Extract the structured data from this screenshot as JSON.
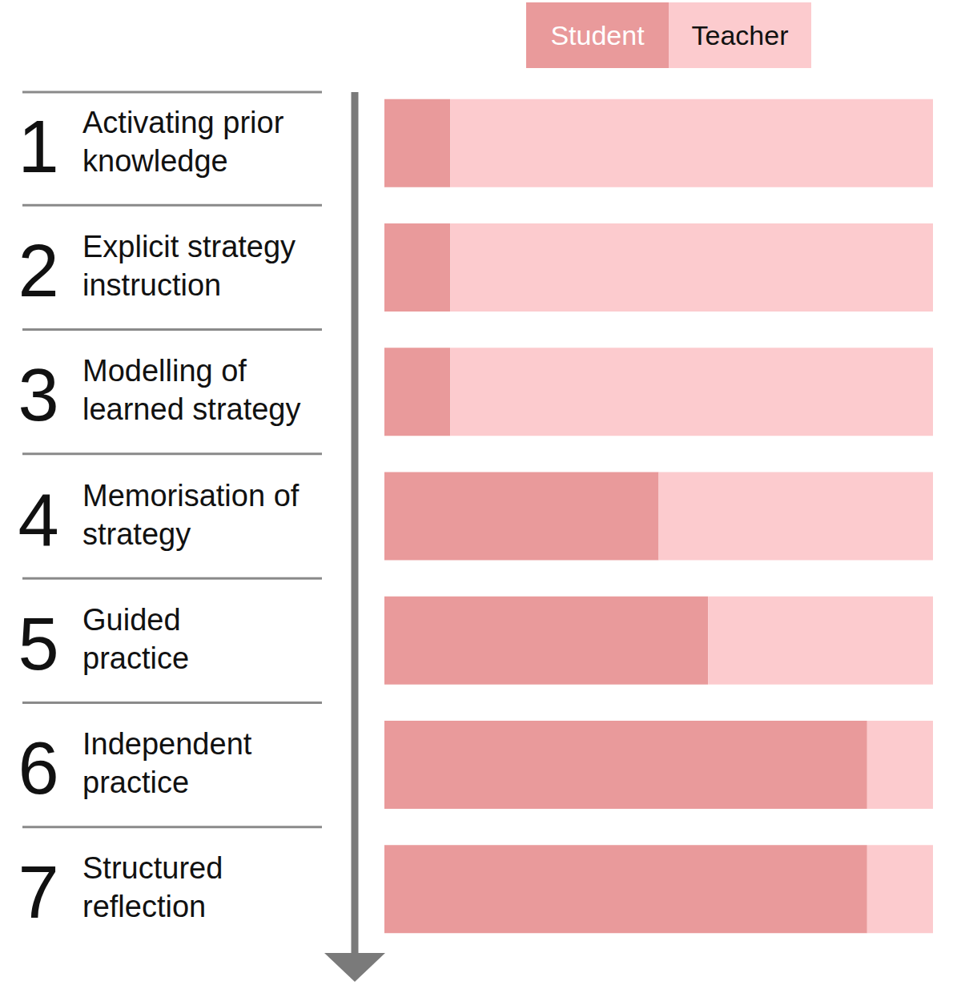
{
  "chart_data": {
    "type": "bar",
    "orientation": "horizontal",
    "stacked": true,
    "step_numbers": [
      1,
      2,
      3,
      4,
      5,
      6,
      7
    ],
    "categories": [
      "Activating prior\nknowledge",
      "Explicit strategy\ninstruction",
      "Modelling of\nlearned strategy",
      "Memorisation of\nstrategy",
      "Guided\npractice",
      "Independent\npractice",
      "Structured\nreflection"
    ],
    "series": [
      {
        "name": "Student",
        "color": "#e99a9b",
        "values": [
          12,
          12,
          12,
          50,
          59,
          88,
          88
        ]
      },
      {
        "name": "Teacher",
        "color": "#fccbce",
        "values": [
          88,
          88,
          88,
          50,
          41,
          12,
          12
        ]
      }
    ],
    "xlim": [
      0,
      100
    ],
    "xticks": [],
    "grid": false,
    "legend": "top",
    "tick_labels": false
  }
}
